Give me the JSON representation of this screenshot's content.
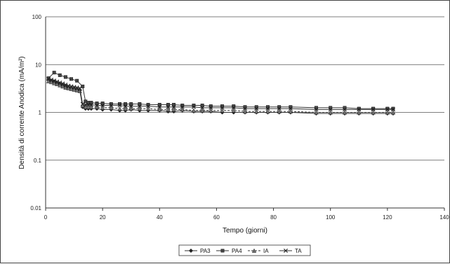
{
  "chart_data": {
    "type": "line",
    "title": "",
    "xlabel": "Tempo (giorni)",
    "ylabel": "Densità di corrente Anodica (mA/m²)",
    "xlim": [
      0,
      140
    ],
    "ylim": [
      0.01,
      100
    ],
    "y_scale": "log",
    "x_ticks": [
      "0",
      "20",
      "40",
      "60",
      "80",
      "100",
      "120",
      "140"
    ],
    "y_ticks": [
      "0.01",
      "0.1",
      "1",
      "10",
      "100"
    ],
    "grid": "horizontal",
    "legend_position": "bottom",
    "series": [
      {
        "name": "PA3",
        "x": [
          1,
          2,
          3,
          4,
          5,
          6,
          7,
          8,
          9,
          10,
          11,
          12,
          13,
          14,
          15,
          16,
          18,
          20,
          23,
          26,
          28,
          30,
          33,
          36,
          40,
          43,
          45,
          48,
          52,
          55,
          58,
          62,
          66,
          70,
          74,
          78,
          82,
          86,
          95,
          100,
          105,
          110,
          115,
          120,
          122
        ],
        "y": [
          4.8,
          4.6,
          4.4,
          4.1,
          3.9,
          3.7,
          3.5,
          3.3,
          3.2,
          3.1,
          3.0,
          2.9,
          1.3,
          1.2,
          1.2,
          1.2,
          1.2,
          1.15,
          1.15,
          1.1,
          1.1,
          1.15,
          1.1,
          1.1,
          1.1,
          1.05,
          1.05,
          1.1,
          1.05,
          1.05,
          1.05,
          1.0,
          1.0,
          1.0,
          1.0,
          1.0,
          1.0,
          1.0,
          0.95,
          0.95,
          0.95,
          0.95,
          0.95,
          0.95,
          0.95
        ]
      },
      {
        "name": "PA4",
        "x": [
          1,
          3,
          5,
          7,
          9,
          11,
          13,
          14,
          15,
          16,
          18,
          20,
          23,
          26,
          28,
          30,
          33,
          36,
          40,
          43,
          45,
          48,
          52,
          55,
          58,
          62,
          66,
          70,
          74,
          78,
          82,
          86,
          95,
          100,
          105,
          110,
          115,
          120,
          122
        ],
        "y": [
          5.2,
          6.8,
          6.0,
          5.5,
          5.0,
          4.6,
          3.5,
          1.7,
          1.6,
          1.6,
          1.55,
          1.55,
          1.5,
          1.5,
          1.5,
          1.5,
          1.5,
          1.45,
          1.45,
          1.45,
          1.45,
          1.4,
          1.4,
          1.4,
          1.35,
          1.35,
          1.35,
          1.3,
          1.3,
          1.3,
          1.3,
          1.3,
          1.25,
          1.25,
          1.25,
          1.2,
          1.2,
          1.2,
          1.2
        ]
      },
      {
        "name": "IA",
        "x": [
          1,
          2,
          3,
          4,
          5,
          6,
          7,
          8,
          9,
          10,
          11,
          12,
          13,
          14,
          15,
          16,
          18,
          20,
          23,
          26,
          28,
          30,
          33,
          36,
          40,
          43,
          45,
          48,
          52,
          55,
          58,
          62,
          66,
          70,
          74,
          78,
          82,
          86,
          95,
          100,
          105,
          110,
          115,
          120,
          122
        ],
        "y": [
          4.5,
          4.3,
          4.1,
          3.9,
          3.7,
          3.5,
          3.3,
          3.2,
          3.1,
          3.0,
          2.9,
          2.8,
          1.4,
          1.3,
          1.3,
          1.3,
          1.3,
          1.25,
          1.25,
          1.2,
          1.2,
          1.2,
          1.2,
          1.2,
          1.15,
          1.15,
          1.15,
          1.15,
          1.1,
          1.1,
          1.1,
          1.1,
          1.1,
          1.05,
          1.05,
          1.05,
          1.05,
          1.05,
          1.0,
          1.0,
          1.0,
          1.0,
          1.0,
          1.0,
          1.0
        ]
      },
      {
        "name": "TA",
        "x": [
          1,
          2,
          3,
          4,
          5,
          6,
          7,
          8,
          9,
          10,
          11,
          12,
          13,
          14,
          15,
          16,
          18,
          20,
          23,
          26,
          28,
          30,
          33,
          36,
          40,
          43,
          45,
          48,
          52,
          55,
          58,
          62,
          66,
          70,
          74,
          78,
          82,
          86,
          95,
          100,
          105,
          110,
          115,
          120,
          122
        ],
        "y": [
          5.0,
          4.8,
          4.6,
          4.4,
          4.2,
          4.0,
          3.8,
          3.6,
          3.5,
          3.4,
          3.3,
          3.2,
          1.5,
          1.45,
          1.45,
          1.45,
          1.4,
          1.4,
          1.4,
          1.4,
          1.35,
          1.35,
          1.35,
          1.35,
          1.3,
          1.3,
          1.3,
          1.3,
          1.3,
          1.25,
          1.25,
          1.25,
          1.25,
          1.2,
          1.2,
          1.2,
          1.2,
          1.2,
          1.15,
          1.15,
          1.15,
          1.15,
          1.15,
          1.15,
          1.15
        ]
      }
    ]
  }
}
